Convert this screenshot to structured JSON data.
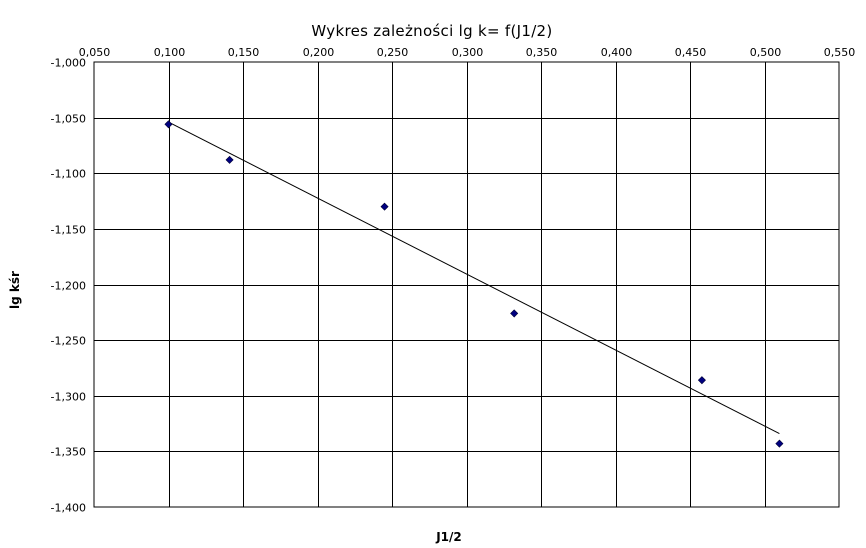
{
  "chart_data": {
    "type": "scatter",
    "title": "Wykres zależności lg k= f(J1/2)",
    "xlabel": "J1/2",
    "ylabel": "lg kśr",
    "xlim": [
      0.05,
      0.55
    ],
    "ylim": [
      -1.4,
      -1.0
    ],
    "x_ticks": [
      "0,050",
      "0,100",
      "0,150",
      "0,200",
      "0,250",
      "0,300",
      "0,350",
      "0,400",
      "0,450",
      "0,500",
      "0,550"
    ],
    "y_ticks": [
      "-1,000",
      "-1,050",
      "-1,100",
      "-1,150",
      "-1,200",
      "-1,250",
      "-1,300",
      "-1,350",
      "-1,400"
    ],
    "grid": true,
    "marker_color": "#000080",
    "series": [
      {
        "points": [
          {
            "x": 0.1,
            "y": -1.056
          },
          {
            "x": 0.141,
            "y": -1.088
          },
          {
            "x": 0.245,
            "y": -1.13
          },
          {
            "x": 0.332,
            "y": -1.226
          },
          {
            "x": 0.458,
            "y": -1.286
          },
          {
            "x": 0.51,
            "y": -1.343
          }
        ]
      }
    ],
    "trendline": {
      "x": [
        0.1,
        0.51
      ],
      "y": [
        -1.054,
        -1.334
      ]
    }
  }
}
